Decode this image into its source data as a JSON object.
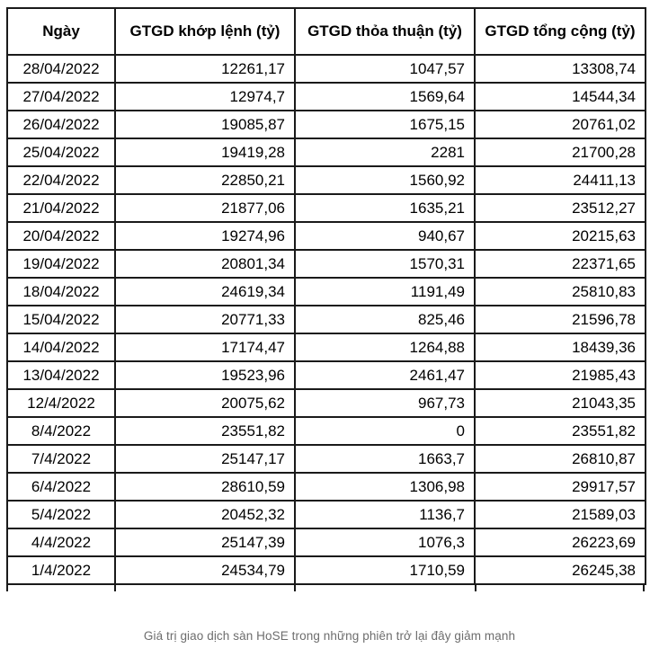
{
  "chart_data": {
    "type": "table",
    "columns": [
      "Ngày",
      "GTGD khớp lệnh (tỷ)",
      "GTGD thỏa thuận (tỷ)",
      "GTGD tổng cộng (tỷ)"
    ],
    "rows": [
      [
        "28/04/2022",
        "12261,17",
        "1047,57",
        "13308,74"
      ],
      [
        "27/04/2022",
        "12974,7",
        "1569,64",
        "14544,34"
      ],
      [
        "26/04/2022",
        "19085,87",
        "1675,15",
        "20761,02"
      ],
      [
        "25/04/2022",
        "19419,28",
        "2281",
        "21700,28"
      ],
      [
        "22/04/2022",
        "22850,21",
        "1560,92",
        "24411,13"
      ],
      [
        "21/04/2022",
        "21877,06",
        "1635,21",
        "23512,27"
      ],
      [
        "20/04/2022",
        "19274,96",
        "940,67",
        "20215,63"
      ],
      [
        "19/04/2022",
        "20801,34",
        "1570,31",
        "22371,65"
      ],
      [
        "18/04/2022",
        "24619,34",
        "1191,49",
        "25810,83"
      ],
      [
        "15/04/2022",
        "20771,33",
        "825,46",
        "21596,78"
      ],
      [
        "14/04/2022",
        "17174,47",
        "1264,88",
        "18439,36"
      ],
      [
        "13/04/2022",
        "19523,96",
        "2461,47",
        "21985,43"
      ],
      [
        "12/4/2022",
        "20075,62",
        "967,73",
        "21043,35"
      ],
      [
        "8/4/2022",
        "23551,82",
        "0",
        "23551,82"
      ],
      [
        "7/4/2022",
        "25147,17",
        "1663,7",
        "26810,87"
      ],
      [
        "6/4/2022",
        "28610,59",
        "1306,98",
        "29917,57"
      ],
      [
        "5/4/2022",
        "20452,32",
        "1136,7",
        "21589,03"
      ],
      [
        "4/4/2022",
        "25147,39",
        "1076,3",
        "26223,69"
      ],
      [
        "1/4/2022",
        "24534,79",
        "1710,59",
        "26245,38"
      ]
    ],
    "caption": "Giá trị giao dịch sàn HoSE trong những phiên trở lại đây giảm mạnh",
    "layout": {
      "grid": "all-borders",
      "date_column_align": "center",
      "value_columns_align": "right"
    },
    "colors": {
      "border": "#1a1a1a",
      "text": "#000000",
      "caption_text": "#6d6d6d",
      "background": "#ffffff"
    }
  }
}
